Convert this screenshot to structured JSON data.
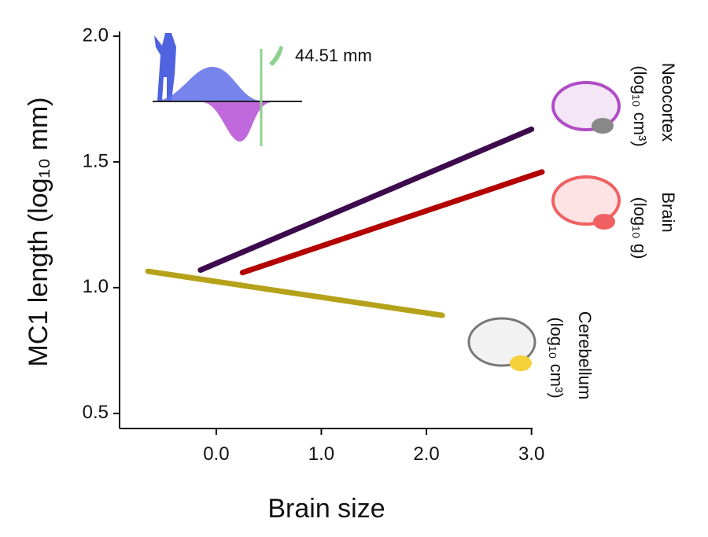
{
  "chart_data": {
    "type": "line",
    "ylabel": "MC1 length (log₁₀ mm)",
    "xlabel": "Brain size",
    "annotation": "44.51 mm",
    "xlim": [
      -0.92,
      3.1
    ],
    "ylim": [
      0.44,
      2.0
    ],
    "xticks": [
      {
        "value": 0,
        "label": "0.0"
      },
      {
        "value": 1,
        "label": "1.0"
      },
      {
        "value": 2,
        "label": "2.0"
      },
      {
        "value": 3,
        "label": "3.0"
      }
    ],
    "yticks": [
      {
        "value": 0.5,
        "label": "0.5"
      },
      {
        "value": 1,
        "label": "1.0"
      },
      {
        "value": 1.5,
        "label": "1.5"
      },
      {
        "value": 2,
        "label": "2.0"
      }
    ],
    "series": [
      {
        "name": "Neocortex",
        "unit": "(log₁₀ cm³)",
        "color": "#3d0a4d",
        "x": [
          -0.15,
          3.0
        ],
        "values": [
          1.07,
          1.63
        ]
      },
      {
        "name": "Brain",
        "unit": "(log₁₀ g)",
        "color": "#b30000",
        "x": [
          0.25,
          3.1
        ],
        "values": [
          1.06,
          1.46
        ]
      },
      {
        "name": "Cerebellum",
        "unit": "(log₁₀ cm³)",
        "color": "#b5a21a",
        "x": [
          -0.65,
          2.15
        ],
        "values": [
          1.065,
          0.89
        ]
      }
    ]
  }
}
